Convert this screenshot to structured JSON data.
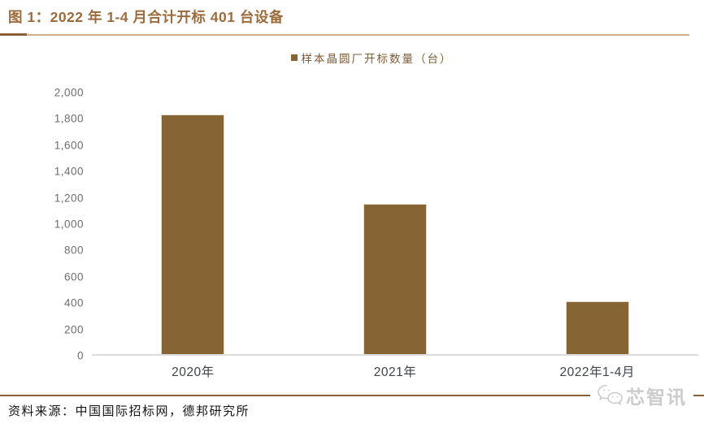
{
  "figure": {
    "title": "图 1：2022 年 1-4 月合计开标 401 台设备",
    "source": "资料来源：中国国际招标网，德邦研究所",
    "watermark": "芯智讯"
  },
  "legend": {
    "label": "样本晶圆厂开标数量（台）"
  },
  "colors": {
    "title_color": "#9c6b3c",
    "rule_dark": "#8a5f38",
    "rule_light": "#d2ae8d",
    "bar_color": "#866434",
    "bar_border": "#e6dbc8",
    "axis_color": "#dcdcdc",
    "ylabel_color": "#6e6e6e",
    "xlabel_color": "#3f4449",
    "watermark_color": "#cccccc"
  },
  "chart_data": {
    "type": "bar",
    "title": "图 1：2022 年 1-4 月合计开标 401 台设备",
    "categories": [
      "2020年",
      "2021年",
      "2022年1-4月"
    ],
    "series": [
      {
        "name": "样本晶圆厂开标数量（台）",
        "values": [
          1830,
          1150,
          401
        ]
      }
    ],
    "xlabel": "",
    "ylabel": "",
    "ylim": [
      0,
      2000
    ],
    "ytick_step": 200,
    "yticks": [
      "2,000",
      "1,800",
      "1,600",
      "1,400",
      "1,200",
      "1,000",
      "800",
      "600",
      "400",
      "200",
      "0"
    ],
    "grid": false,
    "legend_position": "top-center"
  }
}
